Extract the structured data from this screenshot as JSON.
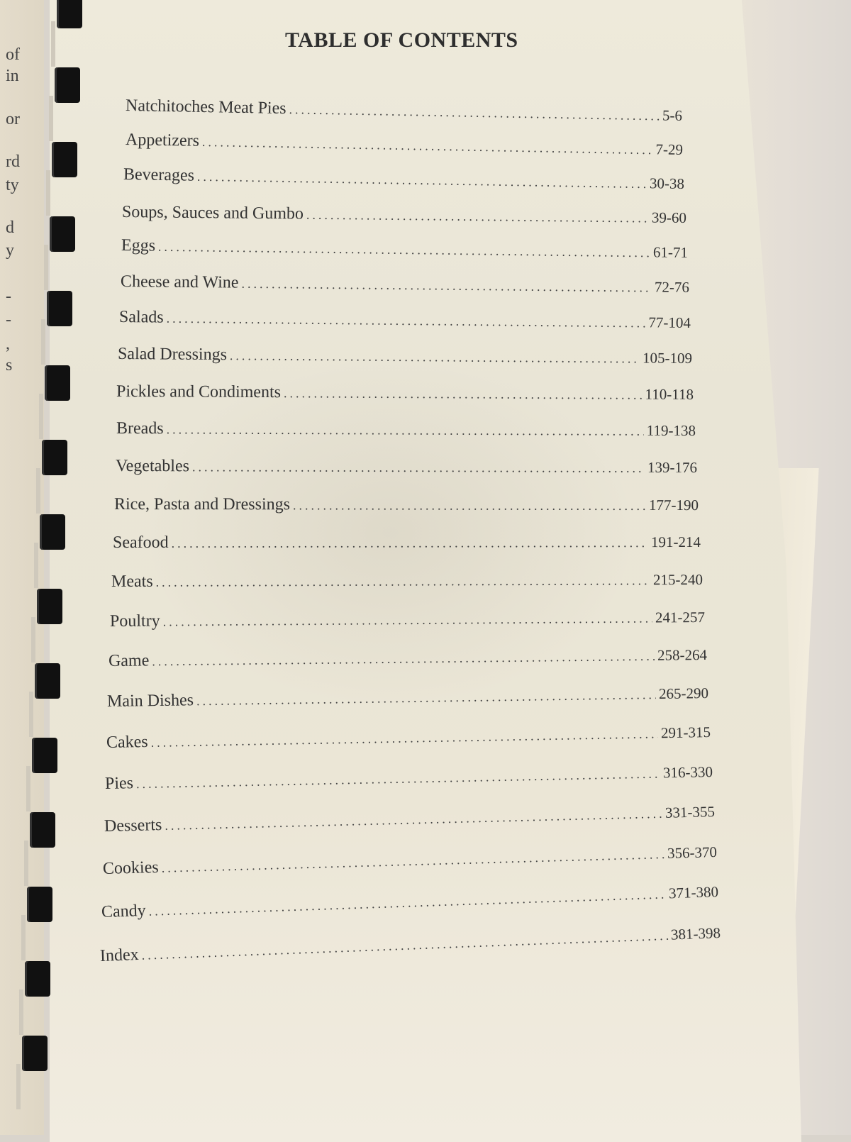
{
  "left_page_fragments": [
    "of",
    "in",
    "or",
    "rd",
    "ty",
    "d",
    "y",
    "-",
    "-",
    ",",
    "s"
  ],
  "title": "TABLE OF CONTENTS",
  "entries": [
    {
      "label": "Natchitoches Meat Pies",
      "pages": "5-6"
    },
    {
      "label": "Appetizers",
      "pages": "7-29"
    },
    {
      "label": "Beverages",
      "pages": "30-38"
    },
    {
      "label": "Soups, Sauces and Gumbo",
      "pages": "39-60"
    },
    {
      "label": "Eggs",
      "pages": "61-71"
    },
    {
      "label": "Cheese and Wine",
      "pages": "72-76"
    },
    {
      "label": "Salads",
      "pages": "77-104"
    },
    {
      "label": "Salad Dressings",
      "pages": "105-109"
    },
    {
      "label": "Pickles and Condiments",
      "pages": "110-118"
    },
    {
      "label": "Breads",
      "pages": "119-138"
    },
    {
      "label": "Vegetables",
      "pages": "139-176"
    },
    {
      "label": "Rice, Pasta and Dressings",
      "pages": "177-190"
    },
    {
      "label": "Seafood",
      "pages": "191-214"
    },
    {
      "label": "Meats",
      "pages": "215-240"
    },
    {
      "label": "Poultry",
      "pages": "241-257"
    },
    {
      "label": "Game",
      "pages": "258-264"
    },
    {
      "label": "Main Dishes",
      "pages": "265-290"
    },
    {
      "label": "Cakes",
      "pages": "291-315"
    },
    {
      "label": "Pies",
      "pages": "316-330"
    },
    {
      "label": "Desserts",
      "pages": "331-355"
    },
    {
      "label": "Cookies",
      "pages": "356-370"
    },
    {
      "label": "Candy",
      "pages": "371-380"
    },
    {
      "label": "Index",
      "pages": "381-398"
    }
  ]
}
